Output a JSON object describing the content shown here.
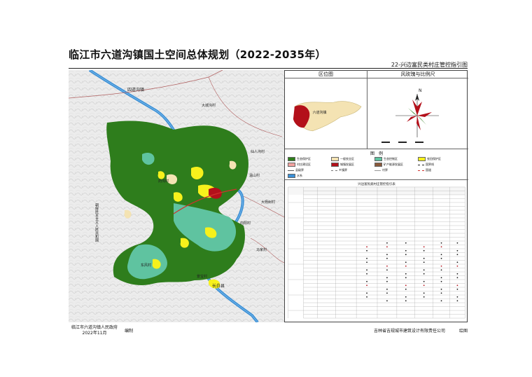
{
  "title": "临江市六道沟镇国土空间总体规划（2022-2035年）",
  "subtitle": "22-兴边富民类村庄管控指引图",
  "map": {
    "labels": {
      "sidaogou": "四道沟镇",
      "dachengzi": "大城沟村",
      "yaogou": "药沟村",
      "xianggou": "仙人沟村",
      "wenshan": "温山村",
      "dongfang": "大杨树村",
      "xiangyang": "向阳村",
      "mache": "马家村",
      "sanchang": "三道沟村",
      "changbai": "长白县",
      "dfk": "东风村",
      "jinma": "景宝村",
      "korea": "朝鲜民主主义人民共和国"
    },
    "colors": {
      "eco_protect": "#2e7d1c",
      "general": "#f4e3b3",
      "eco_control": "#5fc3a0",
      "agri": "#f7f11c",
      "village": "#f3a3a0",
      "town": "#b3101a",
      "river": "#3a8fd6",
      "road": "#c23b3b",
      "hill": "#e5e5e5"
    }
  },
  "location_panel": {
    "header": "区位图",
    "label": "六道沟镇"
  },
  "rose_panel": {
    "header": "风玫瑰与比例尺",
    "north": "N"
  },
  "legend": {
    "title": "图　例",
    "items": [
      {
        "label": "生态保护区",
        "color": "#2e7d1c",
        "kind": "fill"
      },
      {
        "label": "一般农业区",
        "color": "#f4e3b3",
        "kind": "fill"
      },
      {
        "label": "生态控制区",
        "color": "#5fc3a0",
        "kind": "fill"
      },
      {
        "label": "农田保护区",
        "color": "#f7f11c",
        "kind": "fill"
      },
      {
        "label": "村庄建设区",
        "color": "#f3a3a0",
        "kind": "fill"
      },
      {
        "label": "城镇发展区",
        "color": "#b3101a",
        "kind": "fill"
      },
      {
        "label": "矿产能源发展区",
        "color": "#8a5a3c",
        "kind": "fill"
      },
      {
        "label": "国界线",
        "color": "#222222",
        "kind": "line"
      },
      {
        "label": "县级界",
        "color": "#555555",
        "kind": "line"
      },
      {
        "label": "乡镇界",
        "color": "#777777",
        "kind": "line"
      },
      {
        "label": "村界",
        "color": "#999999",
        "kind": "line"
      },
      {
        "label": "国道",
        "color": "#d0312d",
        "kind": "line"
      },
      {
        "label": "水系",
        "color": "#3a8fd6",
        "kind": "fill"
      }
    ]
  },
  "table": {
    "title": "兴边富民类村庄管控指引表"
  },
  "footer": {
    "gov": "临江市六道沟镇人民政府",
    "date": "2022年11月",
    "edit": "编制",
    "company": "吉林省吉规城市建筑设计有限责任公司",
    "draw": "绘图"
  }
}
